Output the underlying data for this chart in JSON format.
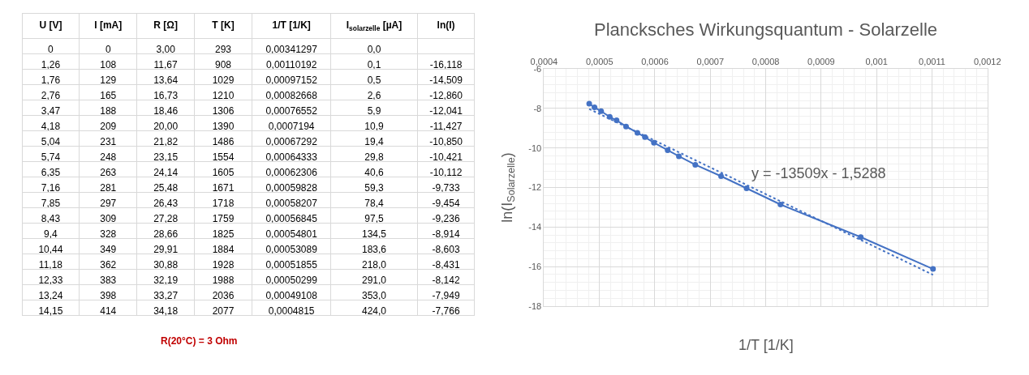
{
  "chart_data": [
    {
      "type": "other",
      "categories": [
        "U [V]",
        "I [mA]",
        "R [Ω]",
        "T [K]",
        "1/T [1/K]",
        "I$_{solarzelle}$ [µA]",
        "ln(I)"
      ],
      "cell_labels": [
        [
          "0",
          "0",
          "3,00",
          "293",
          "0,00341297",
          "0,0",
          null
        ],
        [
          "1,26",
          "108",
          "11,67",
          "908",
          "0,00110192",
          "0,1",
          "-16,118"
        ],
        [
          "1,76",
          "129",
          "13,64",
          "1029",
          "0,00097152",
          "0,5",
          "-14,509"
        ],
        [
          "2,76",
          "165",
          "16,73",
          "1210",
          "0,00082668",
          "2,6",
          "-12,860"
        ],
        [
          "3,47",
          "188",
          "18,46",
          "1306",
          "0,00076552",
          "5,9",
          "-12,041"
        ],
        [
          "4,18",
          "209",
          "20,00",
          "1390",
          "0,0007194",
          "10,9",
          "-11,427"
        ],
        [
          "5,04",
          "231",
          "21,82",
          "1486",
          "0,00067292",
          "19,4",
          "-10,850"
        ],
        [
          "5,74",
          "248",
          "23,15",
          "1554",
          "0,00064333",
          "29,8",
          "-10,421"
        ],
        [
          "6,35",
          "263",
          "24,14",
          "1605",
          "0,00062306",
          "40,6",
          "-10,112"
        ],
        [
          "7,16",
          "281",
          "25,48",
          "1671",
          "0,00059828",
          "59,3",
          "-9,733"
        ],
        [
          "7,85",
          "297",
          "26,43",
          "1718",
          "0,00058207",
          "78,4",
          "-9,454"
        ],
        [
          "8,43",
          "309",
          "27,28",
          "1759",
          "0,00056845",
          "97,5",
          "-9,236"
        ],
        [
          "9,4",
          "328",
          "28,66",
          "1825",
          "0,00054801",
          "134,5",
          "-8,914"
        ],
        [
          "10,44",
          "349",
          "29,91",
          "1884",
          "0,00053089",
          "183,6",
          "-8,603"
        ],
        [
          "11,18",
          "362",
          "30,88",
          "1928",
          "0,00051855",
          "218,0",
          "-8,431"
        ],
        [
          "12,33",
          "383",
          "32,19",
          "1988",
          "0,00050299",
          "291,0",
          "-8,142"
        ],
        [
          "13,24",
          "398",
          "33,27",
          "2036",
          "0,00049108",
          "353,0",
          "-7,949"
        ],
        [
          "14,15",
          "414",
          "34,18",
          "2077",
          "0,0004815",
          "424,0",
          "-7,766"
        ]
      ],
      "annotations": [
        "R(20°C) = 3 Ohm"
      ]
    },
    {
      "type": "line",
      "title": "Plancksches Wirkungsquantum - Solarzelle",
      "xlabel": "1/T [1/K]",
      "ylabel": "ln(I$_{Solarzelle}$)",
      "x": [
        0.00110192,
        0.00097152,
        0.00082668,
        0.00076552,
        0.0007194,
        0.00067292,
        0.00064333,
        0.00062306,
        0.00059828,
        0.00058207,
        0.00056845,
        0.00054801,
        0.00053089,
        0.00051855,
        0.00050299,
        0.00049108,
        0.0004815
      ],
      "series": [
        {
          "color": "#4472c4",
          "marker": "circle",
          "line_style": "solid",
          "values": [
            -16.118,
            -14.509,
            -12.86,
            -12.041,
            -11.427,
            -10.85,
            -10.421,
            -10.112,
            -9.733,
            -9.454,
            -9.236,
            -8.914,
            -8.603,
            -8.431,
            -8.142,
            -7.949,
            -7.766
          ]
        },
        {
          "type": "line",
          "color": "#4472c4",
          "marker": "none",
          "line_style": "dotted",
          "x": [
            0.0004815,
            0.00110192
          ],
          "values": [
            -8.033,
            -16.414
          ]
        }
      ],
      "xlim": [
        0.0004,
        0.0012
      ],
      "xticks": [
        {
          "value": 0.0004,
          "label": "0,0004"
        },
        {
          "value": 0.0005,
          "label": "0,0005"
        },
        {
          "value": 0.0006,
          "label": "0,0006"
        },
        {
          "value": 0.0007,
          "label": "0,0007"
        },
        {
          "value": 0.0008,
          "label": "0,0008"
        },
        {
          "value": 0.0009,
          "label": "0,0009"
        },
        {
          "value": 0.001,
          "label": "0,001"
        },
        {
          "value": 0.0011,
          "label": "0,0011"
        },
        {
          "value": 0.0012,
          "label": "0,0012"
        }
      ],
      "ylim": [
        -18,
        -6
      ],
      "yticks": [
        -18,
        -16,
        -14,
        -12,
        -10,
        -8,
        -6
      ],
      "grid": true,
      "annotations": [
        "y = -13509x - 1,5288"
      ]
    }
  ]
}
